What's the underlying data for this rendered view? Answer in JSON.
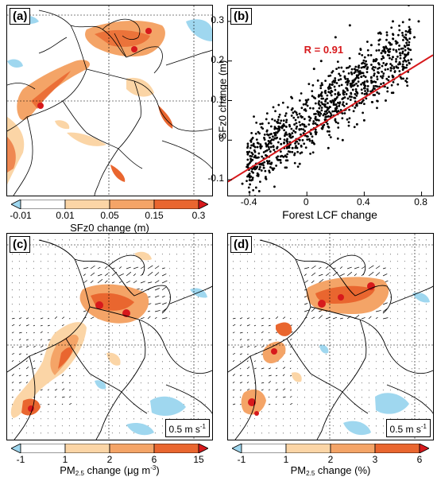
{
  "panels": {
    "a": {
      "label": "(a)"
    },
    "b": {
      "label": "(b)"
    },
    "c": {
      "label": "(c)"
    },
    "d": {
      "label": "(d)"
    }
  },
  "reference_vector": {
    "c": "0.5 m s",
    "d": "0.5 m s",
    "exp": "-1"
  },
  "colorbars": {
    "a": {
      "title": "SFz0 change (m)",
      "ticks": [
        "-0.01",
        "0.01",
        "0.05",
        "0.15",
        "0.3"
      ],
      "colors": [
        "#9fd7ef",
        "#ffffff",
        "#fbd5a6",
        "#f4a467",
        "#e9662f",
        "#d7191c"
      ]
    },
    "c": {
      "title_prefix": "PM",
      "title_sub": "2.5",
      "title_suffix": " change (μg m",
      "title_sup": "-3",
      "title_end": ")",
      "ticks": [
        "-1",
        "1",
        "2",
        "6",
        "15"
      ],
      "colors": [
        "#9fd7ef",
        "#ffffff",
        "#fbd5a6",
        "#f4a467",
        "#e9662f",
        "#d7191c"
      ]
    },
    "d": {
      "title_prefix": "PM",
      "title_sub": "2.5",
      "title_suffix": " change (%)",
      "ticks": [
        "-1",
        "1",
        "2",
        "3",
        "6"
      ],
      "colors": [
        "#9fd7ef",
        "#ffffff",
        "#fbd5a6",
        "#f4a467",
        "#e9662f",
        "#d7191c"
      ]
    }
  },
  "chart_data": {
    "type": "scatter",
    "xlabel": "Forest LCF change",
    "ylabel": "SFz0 change (m)",
    "xlim": [
      -0.55,
      0.88
    ],
    "ylim": [
      -0.14,
      0.34
    ],
    "xticks": [
      "-0.4",
      "0",
      "0.4",
      "0.8"
    ],
    "yticks": [
      "-0.1",
      "0",
      "0.1",
      "0.2",
      "0.3"
    ],
    "xtick_values": [
      -0.4,
      0,
      0.4,
      0.8
    ],
    "ytick_values": [
      -0.1,
      0,
      0.1,
      0.2,
      0.3
    ],
    "annotation": "R = 0.91",
    "annotation_color": "#d7191c",
    "point_color": "#000000",
    "fit_color": "#d7191c",
    "fit_line": {
      "x": [
        -0.55,
        0.88
      ],
      "y": [
        -0.105,
        0.215
      ]
    },
    "points": [
      [
        -0.45,
        -0.11
      ],
      [
        -0.4,
        -0.09
      ],
      [
        -0.38,
        -0.1
      ],
      [
        -0.35,
        -0.06
      ],
      [
        -0.3,
        -0.07
      ],
      [
        -0.28,
        -0.04
      ],
      [
        -0.25,
        -0.06
      ],
      [
        -0.22,
        -0.03
      ],
      [
        -0.2,
        -0.05
      ],
      [
        -0.18,
        -0.01
      ],
      [
        -0.15,
        -0.04
      ],
      [
        -0.12,
        0.01
      ],
      [
        -0.1,
        -0.02
      ],
      [
        -0.08,
        0.02
      ],
      [
        -0.05,
        0.0
      ],
      [
        -0.03,
        0.04
      ],
      [
        0.0,
        0.01
      ],
      [
        0.02,
        0.05
      ],
      [
        0.05,
        0.03
      ],
      [
        0.08,
        0.07
      ],
      [
        0.1,
        0.04
      ],
      [
        0.12,
        0.09
      ],
      [
        0.15,
        0.06
      ],
      [
        0.18,
        0.1
      ],
      [
        0.2,
        0.08
      ],
      [
        0.22,
        0.12
      ],
      [
        0.25,
        0.09
      ],
      [
        0.28,
        0.13
      ],
      [
        0.3,
        0.11
      ],
      [
        0.32,
        0.15
      ],
      [
        0.35,
        0.12
      ],
      [
        0.38,
        0.16
      ],
      [
        0.4,
        0.14
      ],
      [
        0.42,
        0.18
      ],
      [
        0.45,
        0.15
      ],
      [
        0.48,
        0.2
      ],
      [
        0.5,
        0.17
      ],
      [
        0.52,
        0.22
      ],
      [
        0.55,
        0.19
      ],
      [
        0.58,
        0.23
      ],
      [
        0.6,
        0.21
      ],
      [
        0.62,
        0.25
      ],
      [
        0.65,
        0.22
      ],
      [
        0.68,
        0.26
      ],
      [
        0.7,
        0.24
      ],
      [
        0.72,
        0.28
      ],
      [
        0.75,
        0.26
      ],
      [
        0.78,
        0.3
      ],
      [
        0.2,
        0.26
      ],
      [
        0.3,
        0.29
      ],
      [
        0.1,
        0.2
      ],
      [
        0.05,
        0.18
      ],
      [
        -0.1,
        0.08
      ],
      [
        0.25,
        0.0
      ],
      [
        0.4,
        0.05
      ],
      [
        0.55,
        0.1
      ],
      [
        0.35,
        0.04
      ],
      [
        0.15,
        -0.02
      ],
      [
        -0.05,
        -0.06
      ],
      [
        0.5,
        0.27
      ],
      [
        0.45,
        0.24
      ],
      [
        0.6,
        0.3
      ]
    ]
  }
}
